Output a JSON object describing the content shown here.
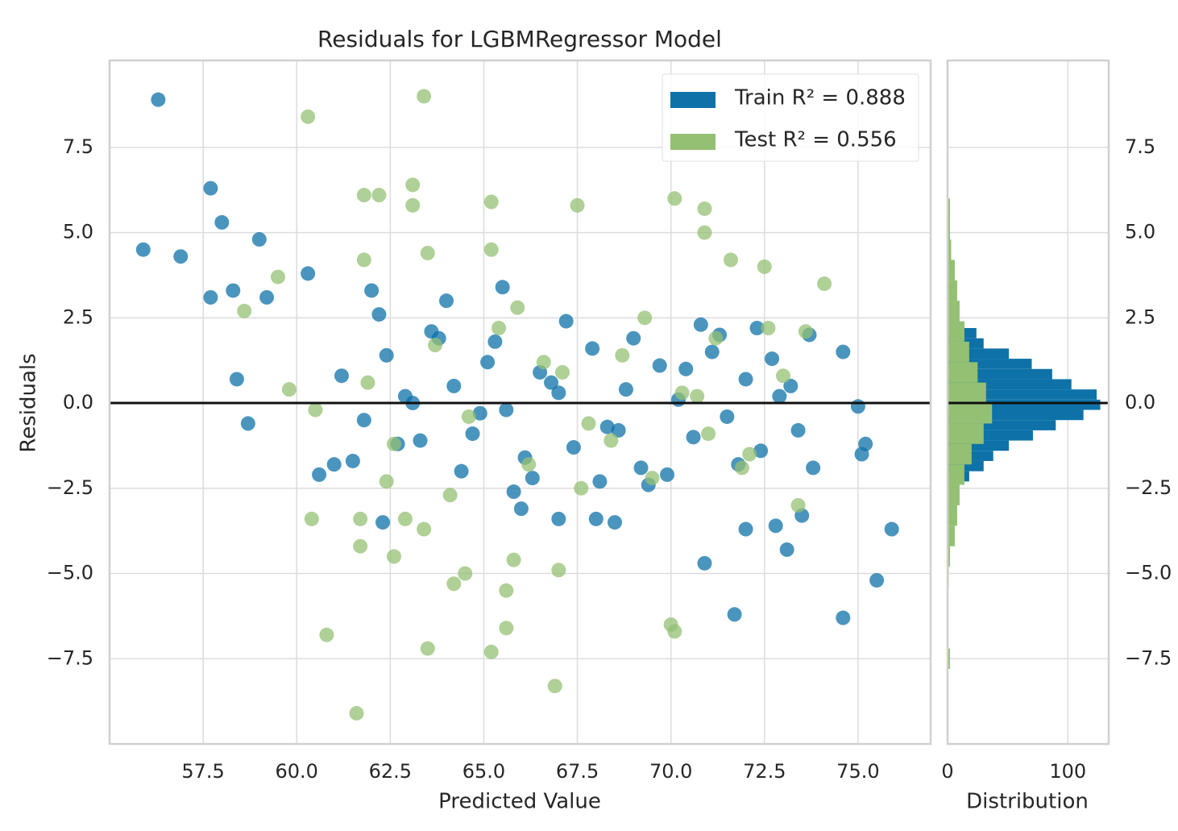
{
  "chart_data": [
    {
      "type": "scatter",
      "title": "Residuals for LGBMRegressor Model",
      "xlabel": "Predicted Value",
      "ylabel": "Residuals",
      "xlim": [
        55.0,
        76.94
      ],
      "ylim": [
        -10.0,
        10.05
      ],
      "xticks": [
        57.5,
        {
          "value": 60,
          "label": "60.0"
        },
        62.5,
        {
          "value": 65,
          "label": "65.0"
        },
        67.5,
        {
          "value": 70,
          "label": "70.0"
        },
        72.5,
        {
          "value": 75,
          "label": "75.0"
        }
      ],
      "yticks": [
        {
          "value": -7.5,
          "label": "−7.5"
        },
        {
          "value": -5,
          "label": "−5.0"
        },
        {
          "value": -2.5,
          "label": "−2.5"
        },
        {
          "value": 0,
          "label": "0.0"
        },
        2.5,
        {
          "value": 5,
          "label": "5.0"
        },
        7.5
      ],
      "grid": true,
      "legend": "upper right",
      "series": [
        {
          "name": "Train R² = 0.888",
          "color": "#0e72a8",
          "x": [
            56.3,
            57.7,
            58.0,
            55.9,
            56.9,
            59.0,
            57.7,
            58.3,
            60.3,
            59.2,
            58.4,
            58.7,
            60.6,
            61.0,
            62.3,
            75.9,
            75.5,
            74.6,
            71.7,
            70.9,
            72.0,
            73.1,
            72.8,
            73.5,
            75.2,
            75.1,
            73.8,
            74.6,
            75.0,
            73.4,
            73.7,
            72.3,
            64.0,
            65.5,
            62.0,
            66.0,
            67.0,
            68.0,
            68.5,
            61.2,
            61.8,
            62.4,
            62.9,
            63.3,
            63.8,
            64.2,
            64.7,
            65.1,
            65.6,
            66.1,
            66.5,
            67.0,
            67.4,
            67.9,
            68.3,
            68.8,
            69.2,
            69.7,
            70.2,
            70.6,
            71.1,
            71.5,
            72.0,
            72.4,
            72.9,
            61.5,
            62.7,
            63.6,
            64.4,
            65.3,
            66.3,
            67.2,
            68.1,
            69.0,
            69.9,
            70.8,
            71.8,
            72.7,
            63.1,
            64.9,
            66.8,
            68.6,
            70.4,
            62.2,
            65.8,
            69.4,
            71.3,
            73.2
          ],
          "values": [
            8.9,
            6.3,
            5.3,
            4.5,
            4.3,
            4.8,
            3.1,
            3.3,
            3.8,
            3.1,
            0.7,
            -0.6,
            -2.1,
            -1.8,
            -3.5,
            -3.7,
            -5.2,
            -6.3,
            -6.2,
            -4.7,
            -3.7,
            -4.3,
            -3.6,
            -3.3,
            -1.2,
            -1.5,
            -1.9,
            1.5,
            -0.1,
            -0.8,
            2.0,
            2.2,
            3.0,
            3.4,
            3.3,
            -3.1,
            -3.4,
            -3.4,
            -3.5,
            0.8,
            -0.5,
            1.4,
            0.2,
            -1.1,
            1.9,
            0.5,
            -0.9,
            1.2,
            -0.2,
            -1.6,
            0.9,
            0.3,
            -1.3,
            1.6,
            -0.7,
            0.4,
            -1.9,
            1.1,
            0.1,
            -1.0,
            1.5,
            -0.4,
            0.7,
            -1.4,
            0.2,
            -1.7,
            -1.2,
            2.1,
            -2.0,
            1.8,
            -2.2,
            2.4,
            -2.3,
            1.9,
            -2.1,
            2.3,
            -1.8,
            1.3,
            0.0,
            -0.3,
            0.6,
            -0.8,
            1.0,
            2.6,
            -2.6,
            -2.4,
            2.0,
            0.5
          ]
        },
        {
          "name": "Test R² = 0.556",
          "color": "#94c073",
          "x": [
            63.4,
            60.3,
            61.8,
            62.2,
            63.1,
            63.1,
            65.2,
            67.5,
            70.1,
            70.9,
            70.9,
            61.8,
            63.5,
            65.2,
            72.5,
            71.6,
            74.1,
            59.5,
            58.6,
            60.4,
            61.7,
            61.7,
            62.6,
            64.2,
            64.5,
            65.6,
            65.8,
            67.0,
            60.8,
            63.5,
            65.2,
            65.6,
            70.0,
            70.1,
            61.6,
            66.9,
            62.9,
            63.4,
            72.6,
            71.9,
            73.4,
            61.9,
            62.6,
            63.7,
            64.6,
            65.4,
            66.2,
            67.1,
            67.8,
            68.7,
            69.5,
            70.3,
            71.2,
            72.1,
            73.0,
            64.1,
            65.9,
            67.6,
            69.3,
            71.0,
            62.4,
            66.6,
            68.4,
            70.7,
            73.6,
            59.8,
            60.5
          ],
          "values": [
            9.0,
            8.4,
            6.1,
            6.1,
            6.4,
            5.8,
            5.9,
            5.8,
            6.0,
            5.7,
            5.0,
            4.2,
            4.4,
            4.5,
            4.0,
            4.2,
            3.5,
            3.7,
            2.7,
            -3.4,
            -3.4,
            -4.2,
            -4.5,
            -5.3,
            -5.0,
            -5.5,
            -4.6,
            -4.9,
            -6.8,
            -7.2,
            -7.3,
            -6.6,
            -6.5,
            -6.7,
            -9.1,
            -8.3,
            -3.4,
            -3.7,
            2.2,
            -1.9,
            -3.0,
            0.6,
            -1.2,
            1.7,
            -0.4,
            2.2,
            -1.8,
            0.9,
            -0.6,
            1.4,
            -2.2,
            0.3,
            1.9,
            -1.5,
            0.8,
            -2.7,
            2.8,
            -2.5,
            2.5,
            -0.9,
            -2.3,
            1.2,
            -1.1,
            0.2,
            2.1,
            0.4,
            -0.2
          ]
        }
      ]
    },
    {
      "type": "histogram",
      "orientation": "horizontal",
      "xlabel": "Distribution",
      "xlim": [
        0,
        134
      ],
      "ylim": [
        -10.0,
        10.05
      ],
      "xticks": [
        0,
        100
      ],
      "yticks": [
        {
          "value": -7.5,
          "label": "−7.5"
        },
        {
          "value": -5,
          "label": "−5.0"
        },
        {
          "value": -2.5,
          "label": "−2.5"
        },
        {
          "value": 0,
          "label": "0.0"
        },
        2.5,
        {
          "value": 5,
          "label": "5.0"
        },
        7.5
      ],
      "grid": true,
      "series": [
        {
          "color": "#0e72a8",
          "bins": [
            -2.3,
            -2.0,
            -1.7,
            -1.4,
            -1.1,
            -0.8,
            -0.5,
            -0.2,
            0.1,
            0.4,
            0.7,
            1.0,
            1.3,
            1.6,
            1.9,
            2.2
          ],
          "values": [
            18,
            30,
            38,
            51,
            71,
            90,
            113,
            127,
            124,
            103,
            87,
            70,
            51,
            30,
            24
          ]
        },
        {
          "color": "#94c073",
          "bins": [
            -7.8,
            -7.2,
            -6.6,
            -6.0,
            -5.4,
            -4.8,
            -4.2,
            -3.6,
            -3.0,
            -2.4,
            -1.8,
            -1.2,
            -0.6,
            0.0,
            0.6,
            1.2,
            1.8,
            2.4,
            3.0,
            3.6,
            4.2,
            4.8,
            5.4,
            6.0
          ],
          "values": [
            2,
            0,
            0,
            0,
            1,
            2,
            6,
            8,
            10,
            14,
            20,
            30,
            37,
            32,
            25,
            18,
            14,
            10,
            8,
            6,
            3,
            2,
            2
          ]
        }
      ]
    }
  ]
}
